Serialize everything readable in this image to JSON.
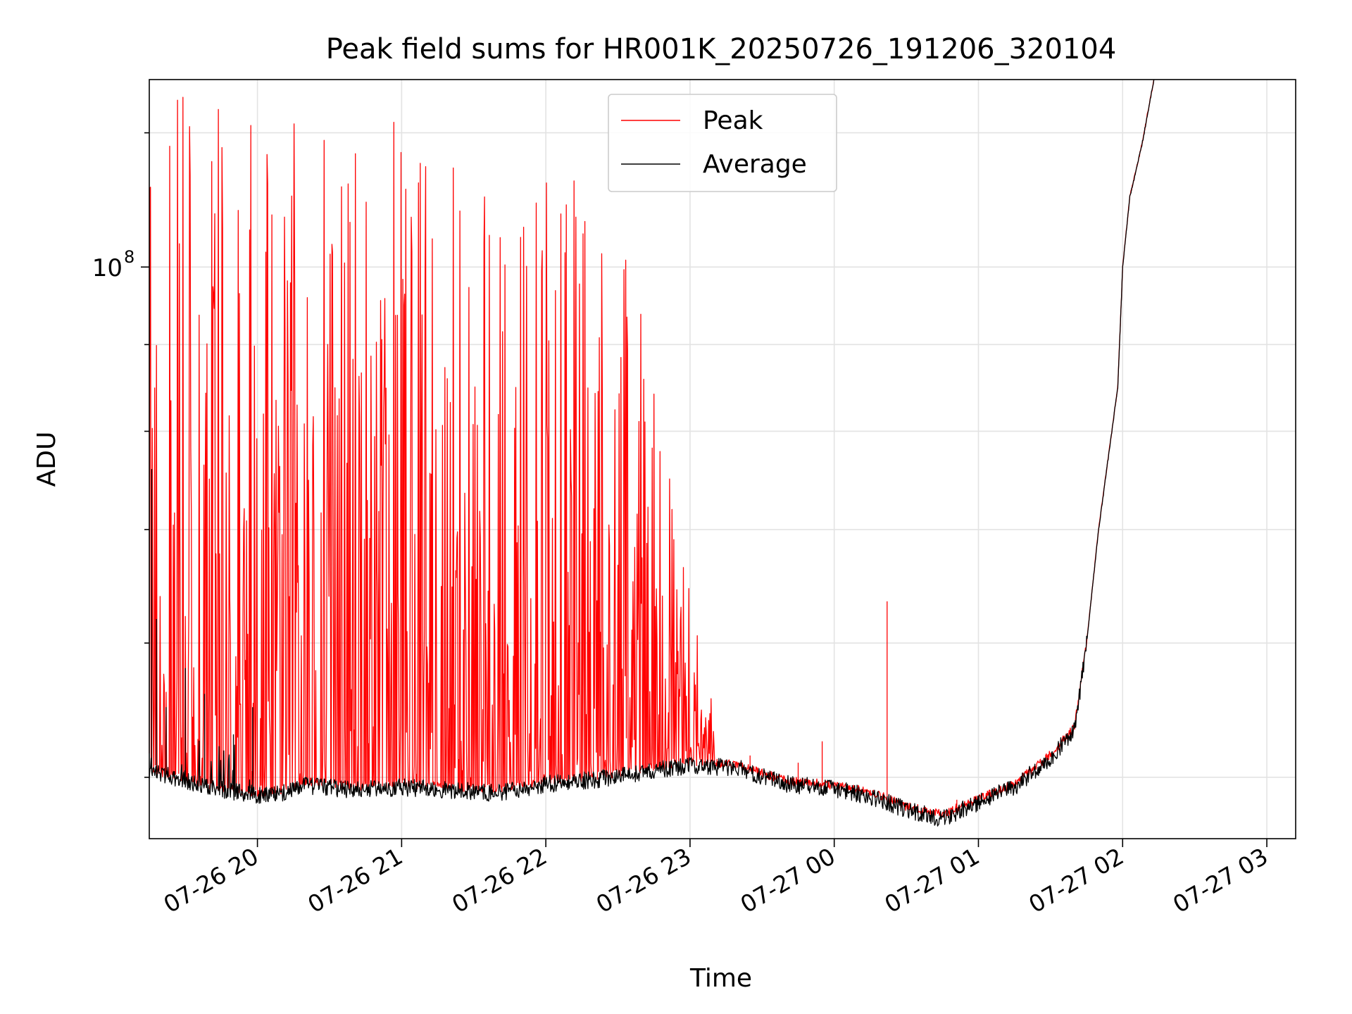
{
  "chart_data": {
    "type": "line",
    "title": "Peak field sums for HR001K_20250726_191206_320104",
    "xlabel": "Time",
    "ylabel": "ADU",
    "yscale": "log",
    "xlim": [
      "2025-07-26T19:15",
      "2025-07-27T03:12"
    ],
    "ylim": [
      46000000.0,
      129000000.0
    ],
    "grid": true,
    "legend": "top-center",
    "x_ticks": [
      {
        "t": "2025-07-26T20:00",
        "label": "07-26 20"
      },
      {
        "t": "2025-07-26T21:00",
        "label": "07-26 21"
      },
      {
        "t": "2025-07-26T22:00",
        "label": "07-26 22"
      },
      {
        "t": "2025-07-26T23:00",
        "label": "07-26 23"
      },
      {
        "t": "2025-07-27T00:00",
        "label": "07-27 00"
      },
      {
        "t": "2025-07-27T01:00",
        "label": "07-27 01"
      },
      {
        "t": "2025-07-27T02:00",
        "label": "07-27 02"
      },
      {
        "t": "2025-07-27T03:00",
        "label": "07-27 03"
      }
    ],
    "y_major_ticks": [
      {
        "value": 100000000,
        "base": "10",
        "exp": "8"
      }
    ],
    "y_minor_ticks": [
      50000000,
      60000000,
      70000000,
      80000000,
      90000000,
      120000000
    ],
    "series": [
      {
        "name": "Peak",
        "color": "#ff0000",
        "baseline": [
          [
            "2025-07-26T19:15",
            50500000.0
          ],
          [
            "2025-07-26T19:45",
            49200000.0
          ],
          [
            "2025-07-26T20:05",
            48800000.0
          ],
          [
            "2025-07-26T20:20",
            49700000.0
          ],
          [
            "2025-07-26T20:40",
            49300000.0
          ],
          [
            "2025-07-26T21:00",
            49500000.0
          ],
          [
            "2025-07-26T21:20",
            49300000.0
          ],
          [
            "2025-07-26T21:40",
            49200000.0
          ],
          [
            "2025-07-26T22:00",
            49700000.0
          ],
          [
            "2025-07-26T22:20",
            50000000.0
          ],
          [
            "2025-07-26T22:40",
            50500000.0
          ],
          [
            "2025-07-26T23:00",
            51000000.0
          ],
          [
            "2025-07-26T23:20",
            50800000.0
          ],
          [
            "2025-07-26T23:40",
            49700000.0
          ],
          [
            "2025-07-26T23:55",
            49500000.0
          ],
          [
            "2025-07-27T00:15",
            49000000.0
          ],
          [
            "2025-07-27T00:30",
            48000000.0
          ],
          [
            "2025-07-27T00:45",
            47500000.0
          ],
          [
            "2025-07-27T01:00",
            48500000.0
          ],
          [
            "2025-07-27T01:15",
            49500000.0
          ],
          [
            "2025-07-27T01:30",
            51500000.0
          ],
          [
            "2025-07-27T01:40",
            53500000.0
          ],
          [
            "2025-07-27T01:45",
            60000000.0
          ],
          [
            "2025-07-27T01:50",
            70000000.0
          ],
          [
            "2025-07-27T01:58",
            85000000.0
          ],
          [
            "2025-07-27T02:00",
            100000000.0
          ],
          [
            "2025-07-27T02:03",
            110000000.0
          ],
          [
            "2025-07-27T02:08",
            118000000.0
          ],
          [
            "2025-07-27T02:13",
            129000000.0
          ]
        ],
        "spikes": [
          [
            "2025-07-26T23:25",
            51500000.0
          ],
          [
            "2025-07-26T23:45",
            51000000.0
          ],
          [
            "2025-07-26T23:55",
            52500000.0
          ],
          [
            "2025-07-27T00:22",
            63500000.0
          ],
          [
            "2025-07-27T00:51",
            48500000.0
          ],
          [
            "2025-07-27T01:05",
            49000000.0
          ]
        ],
        "spike_envelope": [
          [
            "2025-07-26T19:15",
            129000000.0
          ],
          [
            "2025-07-26T19:45",
            129000000.0
          ],
          [
            "2025-07-26T20:20",
            125000000.0
          ],
          [
            "2025-07-26T20:45",
            120000000.0
          ],
          [
            "2025-07-26T21:00",
            125000000.0
          ],
          [
            "2025-07-26T21:25",
            120000000.0
          ],
          [
            "2025-07-26T21:45",
            105000000.0
          ],
          [
            "2025-07-26T22:00",
            114000000.0
          ],
          [
            "2025-07-26T22:20",
            113000000.0
          ],
          [
            "2025-07-26T22:35",
            105000000.0
          ],
          [
            "2025-07-26T22:45",
            85000000.0
          ],
          [
            "2025-07-26T23:00",
            65000000.0
          ],
          [
            "2025-07-26T23:10",
            56000000.0
          ]
        ]
      },
      {
        "name": "Average",
        "color": "#000000",
        "baseline": [
          [
            "2025-07-26T19:15",
            50500000.0
          ],
          [
            "2025-07-26T19:45",
            49200000.0
          ],
          [
            "2025-07-26T20:05",
            48800000.0
          ],
          [
            "2025-07-26T20:20",
            49500000.0
          ],
          [
            "2025-07-26T20:40",
            49200000.0
          ],
          [
            "2025-07-26T21:00",
            49400000.0
          ],
          [
            "2025-07-26T21:20",
            49200000.0
          ],
          [
            "2025-07-26T21:40",
            49000000.0
          ],
          [
            "2025-07-26T22:00",
            49600000.0
          ],
          [
            "2025-07-26T22:20",
            49900000.0
          ],
          [
            "2025-07-26T22:40",
            50400000.0
          ],
          [
            "2025-07-26T23:00",
            50900000.0
          ],
          [
            "2025-07-26T23:20",
            50700000.0
          ],
          [
            "2025-07-26T23:40",
            49600000.0
          ],
          [
            "2025-07-26T23:55",
            49400000.0
          ],
          [
            "2025-07-27T00:15",
            48800000.0
          ],
          [
            "2025-07-27T00:30",
            47900000.0
          ],
          [
            "2025-07-27T00:45",
            47300000.0
          ],
          [
            "2025-07-27T01:00",
            48400000.0
          ],
          [
            "2025-07-27T01:15",
            49400000.0
          ],
          [
            "2025-07-27T01:30",
            51400000.0
          ],
          [
            "2025-07-27T01:40",
            53400000.0
          ],
          [
            "2025-07-27T01:45",
            60000000.0
          ],
          [
            "2025-07-27T01:50",
            70000000.0
          ],
          [
            "2025-07-27T01:58",
            85000000.0
          ],
          [
            "2025-07-27T02:00",
            100000000.0
          ],
          [
            "2025-07-27T02:03",
            110000000.0
          ],
          [
            "2025-07-27T02:08",
            118000000.0
          ],
          [
            "2025-07-27T02:13",
            129000000.0
          ]
        ],
        "early_spikes": [
          [
            "2025-07-26T19:16",
            76000000.0
          ],
          [
            "2025-07-26T19:18",
            62000000.0
          ],
          [
            "2025-07-26T19:22",
            55000000.0
          ],
          [
            "2025-07-26T19:30",
            58000000.0
          ],
          [
            "2025-07-26T19:38",
            56000000.0
          ],
          [
            "2025-07-26T19:50",
            53000000.0
          ],
          [
            "2025-07-26T19:58",
            55000000.0
          ]
        ]
      }
    ]
  }
}
